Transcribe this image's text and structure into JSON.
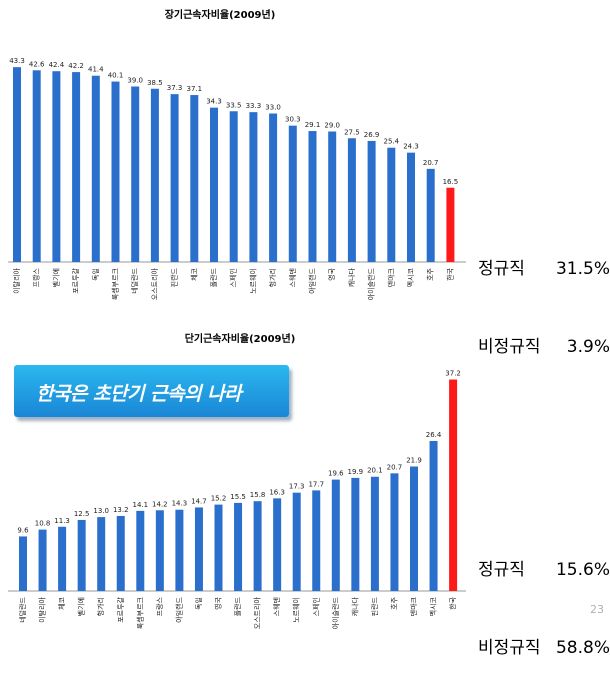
{
  "chart_data": [
    {
      "type": "bar",
      "title": "장기근속자비율(2009년)",
      "categories": [
        "이탈리아",
        "프랑스",
        "벨기에",
        "포르투갈",
        "독일",
        "룩셈부르크",
        "네덜란드",
        "오스트리아",
        "핀란드",
        "체코",
        "폴란드",
        "스페인",
        "노르웨이",
        "헝가리",
        "스웨덴",
        "아일랜드",
        "영국",
        "캐나다",
        "아이슬란드",
        "덴마크",
        "멕시코",
        "호주",
        "한국"
      ],
      "values": [
        43.3,
        42.6,
        42.4,
        42.2,
        41.4,
        40.1,
        39.0,
        38.5,
        37.3,
        37.1,
        34.3,
        33.5,
        33.3,
        33.0,
        30.3,
        29.1,
        29.0,
        27.5,
        26.9,
        25.4,
        24.3,
        20.7,
        16.5
      ],
      "value_labels": [
        "43.3",
        "42.6",
        "42.4",
        "42.2",
        "41.4",
        "40.1",
        "39.0",
        "38.5",
        "37.3",
        "37.1",
        "34.3",
        "33.5",
        "33.3",
        "33.0",
        "30.3",
        "29.1",
        "29.0",
        "27.5",
        "26.9",
        "25.4",
        "24.3",
        "20.7",
        "16.5"
      ],
      "ylim": [
        0,
        44
      ],
      "bar_color": "#2a6fcc",
      "highlight_color": "#ff1a1a",
      "highlight_index": 22
    },
    {
      "type": "bar",
      "title": "단기근속자비율(2009년)",
      "categories": [
        "네덜란드",
        "이탈리아",
        "체코",
        "벨기에",
        "헝가리",
        "포르투갈",
        "룩셈부르크",
        "프랑스",
        "아일랜드",
        "독일",
        "영국",
        "폴란드",
        "오스트리아",
        "스웨덴",
        "노르웨이",
        "스페인",
        "아이슬란드",
        "캐나다",
        "핀란드",
        "호주",
        "덴마크",
        "멕시코",
        "한국"
      ],
      "values": [
        9.6,
        10.8,
        11.3,
        12.5,
        13.0,
        13.2,
        14.1,
        14.2,
        14.3,
        14.7,
        15.2,
        15.5,
        15.8,
        16.3,
        17.3,
        17.7,
        19.6,
        19.9,
        20.1,
        20.7,
        21.9,
        26.4,
        37.2
      ],
      "value_labels": [
        "9.6",
        "10.8",
        "11.3",
        "12.5",
        "13.0",
        "13.2",
        "14.1",
        "14.2",
        "14.3",
        "14.7",
        "15.2",
        "15.5",
        "15.8",
        "16.3",
        "17.3",
        "17.7",
        "19.6",
        "19.9",
        "20.1",
        "20.7",
        "21.9",
        "26.4",
        "37.2"
      ],
      "ylim": [
        0,
        38
      ],
      "bar_color": "#2a6fcc",
      "highlight_color": "#ff1a1a",
      "highlight_index": 22
    }
  ],
  "summary_long": [
    {
      "label": "정규직",
      "value": "31.5%"
    },
    {
      "label": "비정규직",
      "value": "3.9%"
    }
  ],
  "summary_short": [
    {
      "label": "정규직",
      "value": "15.6%"
    },
    {
      "label": "비정규직",
      "value": "58.8%"
    }
  ],
  "banner_text": "한국은 초단기 근속의 나라",
  "page_number": "23"
}
